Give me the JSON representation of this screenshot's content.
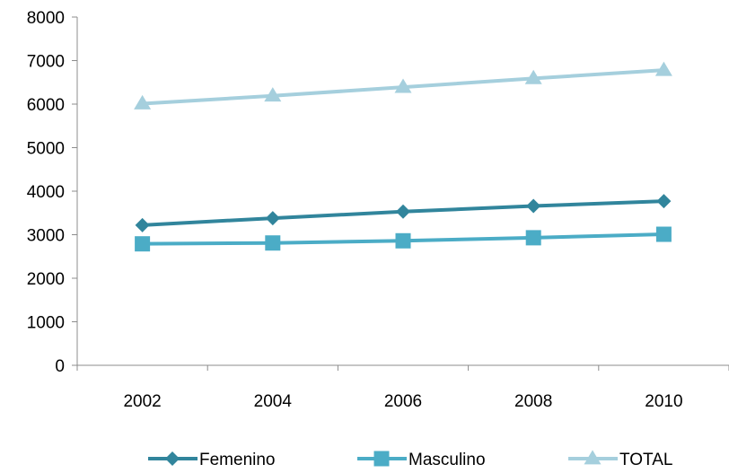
{
  "chart_data": {
    "type": "line",
    "title": "",
    "xlabel": "",
    "ylabel": "",
    "categories": [
      "2002",
      "2004",
      "2006",
      "2008",
      "2010"
    ],
    "ylim": [
      0,
      8000
    ],
    "yticks": [
      0,
      1000,
      2000,
      3000,
      4000,
      5000,
      6000,
      7000,
      8000
    ],
    "grid": false,
    "legend_position": "bottom",
    "series": [
      {
        "name": "Femenino",
        "marker": "diamond",
        "color": "#31859c",
        "values": [
          3220,
          3380,
          3530,
          3660,
          3770
        ]
      },
      {
        "name": "Masculino",
        "marker": "square",
        "color": "#4bacc6",
        "values": [
          2790,
          2810,
          2860,
          2930,
          3010
        ]
      },
      {
        "name": "TOTAL",
        "marker": "triangle",
        "color": "#a5cfdd",
        "values": [
          6010,
          6190,
          6390,
          6590,
          6780
        ]
      }
    ]
  }
}
